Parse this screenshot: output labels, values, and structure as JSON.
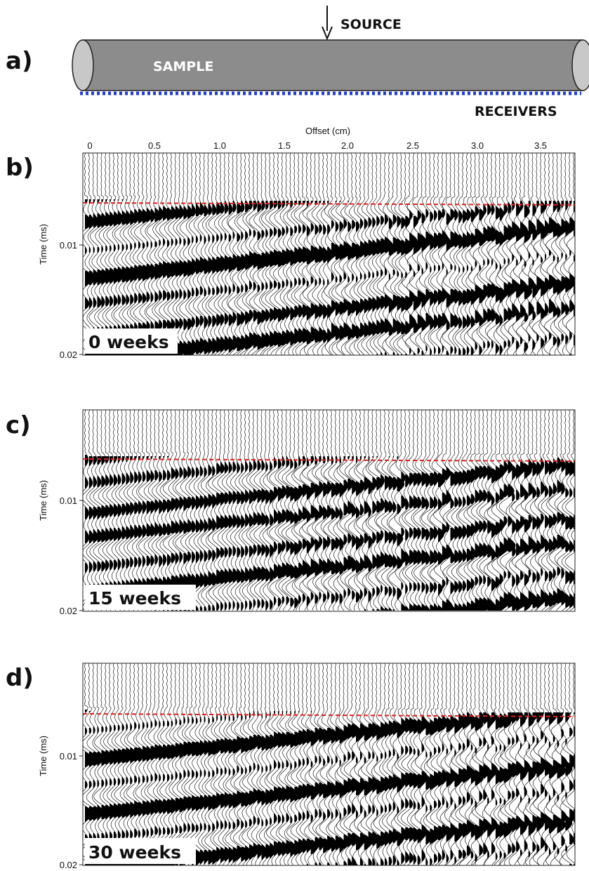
{
  "schematic": {
    "panel_letter": "a)",
    "body_label": "SAMPLE",
    "source_label": "SOURCE",
    "receivers_label": "RECEIVERS",
    "body_color": "#8c8c8c",
    "end_cap_color": "#c8c8c8",
    "receiver_color": "#1f3bd6"
  },
  "x_axis": {
    "title": "Offset (cm)",
    "ticks": [
      "0",
      "0.5",
      "1.0",
      "1.5",
      "2.0",
      "2.5",
      "3.0",
      "3.5"
    ]
  },
  "y_axis": {
    "title": "Time (ms)",
    "ticks": [
      "0.01",
      "0.02"
    ]
  },
  "panels": [
    {
      "letter": "b)",
      "week_label": "0 weeks"
    },
    {
      "letter": "c)",
      "week_label": "15 weeks"
    },
    {
      "letter": "d)",
      "week_label": "30 weeks"
    }
  ],
  "first_arrival_color": "#e0201a",
  "trace_color": "#000000"
}
